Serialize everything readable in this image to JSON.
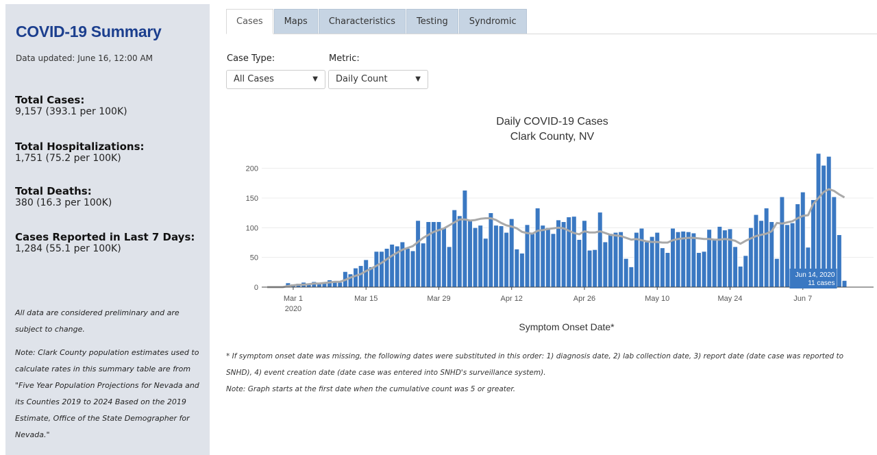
{
  "sidebar": {
    "title": "COVID-19 Summary",
    "updated": "Data updated: June 16, 12:00 AM",
    "stats": [
      {
        "label": "Total Cases:",
        "value": "9,157 (393.1 per 100K)"
      },
      {
        "label": "Total Hospitalizations:",
        "value": "1,751 (75.2 per 100K)"
      },
      {
        "label": "Total Deaths:",
        "value": "380 (16.3 per 100K)"
      },
      {
        "label": "Cases Reported in Last 7 Days:",
        "value": "1,284 (55.1 per 100K)"
      }
    ],
    "note1": "All data are considered preliminary and are subject to change.",
    "note2": "Note: Clark County population estimates used to calculate rates in this summary table are from \"Five Year Population Projections for Nevada and its Counties 2019 to 2024 Based on the 2019 Estimate, Office of the State Demographer for Nevada.\""
  },
  "tabs": [
    "Cases",
    "Maps",
    "Characteristics",
    "Testing",
    "Syndromic"
  ],
  "active_tab": "Cases",
  "filters": {
    "case_type_label": "Case Type:",
    "case_type_value": "All Cases",
    "metric_label": "Metric:",
    "metric_value": "Daily Count"
  },
  "tooltip": {
    "date": "Jun 14, 2020",
    "value": "11 cases"
  },
  "footnote1": "* If symptom onset date was missing, the following dates were substituted in this order: 1) diagnosis date, 2) lab collection date, 3) report date (date case was reported to SNHD), 4) event creation date (date case was entered into SNHD's surveillance system).",
  "footnote2": "Note: Graph starts at the first date when the cumulative count was 5 or greater.",
  "chart_data": {
    "type": "bar",
    "title": "Daily COVID-19 Cases",
    "subtitle": "Clark County, NV",
    "xlabel": "Symptom Onset Date*",
    "ylabel": "",
    "start_date": "2020-02-25",
    "end_date": "2020-06-14",
    "ylim": [
      0,
      225
    ],
    "yticks": [
      0,
      50,
      100,
      150,
      200
    ],
    "xticks": [
      {
        "date": "2020-03-01",
        "label": "Mar 1",
        "sublabel": "2020"
      },
      {
        "date": "2020-03-15",
        "label": "Mar 15"
      },
      {
        "date": "2020-03-29",
        "label": "Mar 29"
      },
      {
        "date": "2020-04-12",
        "label": "Apr 12"
      },
      {
        "date": "2020-04-26",
        "label": "Apr 26"
      },
      {
        "date": "2020-05-10",
        "label": "May 10"
      },
      {
        "date": "2020-05-24",
        "label": "May 24"
      },
      {
        "date": "2020-06-07",
        "label": "Jun 7"
      }
    ],
    "bar_color": "#3a78c2",
    "avg_color": "#a9a9a9",
    "series": [
      {
        "values": [
          0,
          0,
          0,
          0,
          7,
          5,
          6,
          8,
          4,
          9,
          7,
          8,
          12,
          9,
          8,
          26,
          22,
          32,
          36,
          46,
          34,
          60,
          60,
          65,
          72,
          69,
          76,
          65,
          61,
          112,
          74,
          110,
          110,
          110,
          100,
          68,
          130,
          120,
          163,
          113,
          100,
          104,
          82,
          125,
          104,
          103,
          92,
          115,
          64,
          57,
          105,
          90,
          133,
          104,
          100,
          90,
          113,
          110,
          118,
          119,
          80,
          112,
          62,
          63,
          126,
          76,
          90,
          92,
          93,
          48,
          34,
          92,
          99,
          76,
          85,
          92,
          66,
          58,
          99,
          93,
          94,
          93,
          91,
          58,
          60,
          97,
          80,
          102,
          96,
          98,
          68,
          35,
          53,
          100,
          122,
          112,
          133,
          110,
          48,
          152,
          105,
          108,
          140,
          160,
          67,
          147,
          225,
          205,
          220,
          152,
          88,
          11
        ]
      },
      {
        "values": [
          0,
          0,
          0,
          0,
          2,
          3,
          4,
          4,
          5,
          6,
          6,
          7,
          8,
          9,
          9,
          12,
          16,
          19,
          22,
          27,
          31,
          36,
          41,
          47,
          53,
          58,
          63,
          66,
          69,
          76,
          83,
          88,
          93,
          96,
          99,
          104,
          109,
          114,
          114,
          112,
          113,
          115,
          116,
          116,
          113,
          108,
          104,
          102,
          99,
          93,
          91,
          90,
          95,
          96,
          98,
          99,
          100,
          99,
          95,
          91,
          89,
          94,
          92,
          92,
          94,
          91,
          88,
          87,
          86,
          83,
          80,
          81,
          79,
          77,
          76,
          76,
          75,
          75,
          79,
          81,
          82,
          83,
          83,
          82,
          81,
          81,
          80,
          80,
          81,
          80,
          78,
          73,
          78,
          82,
          86,
          88,
          90,
          94,
          108,
          107,
          109,
          111,
          116,
          120,
          121,
          140,
          150,
          160,
          165,
          162,
          156,
          151
        ]
      }
    ]
  }
}
